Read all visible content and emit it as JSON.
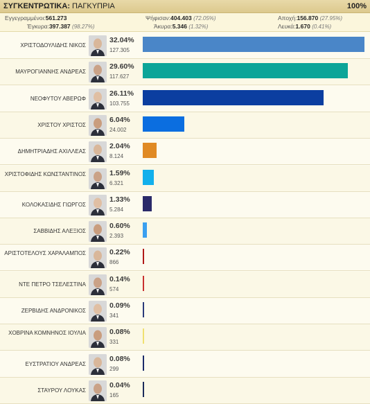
{
  "header": {
    "label": "ΣΥΓΚΕΝΤΡΩΤΙΚΑ:",
    "region": "ΠΑΓΚΥΠΡΙΑ",
    "completion": "100%"
  },
  "stats": {
    "registered_label": "Εγγεγραμμένοι:",
    "registered": "561.273",
    "voted_label": "Ψήφισαν:",
    "voted": "404.403",
    "voted_pct": "(72.05%)",
    "abstention_label": "Αποχή:",
    "abstention": "156.870",
    "abstention_pct": "(27.95%)",
    "valid_label": "Έγκυρα:",
    "valid": "397.387",
    "valid_pct": "(98.27%)",
    "invalid_label": "Άκυρα:",
    "invalid": "5.346",
    "invalid_pct": "(1.32%)",
    "blank_label": "Λευκά:",
    "blank": "1.670",
    "blank_pct": "(0.41%)"
  },
  "candidates": [
    {
      "name": "ΧΡΙΣΤΟΔΟΥΛΙΔΗΣ ΝΙΚΟΣ",
      "pct": "32.04%",
      "votes": "127.305",
      "share": 32.04,
      "color": "#4a86c8"
    },
    {
      "name": "ΜΑΥΡΟΓΙΑΝΝΗΣ ΑΝΔΡΕΑΣ",
      "pct": "29.60%",
      "votes": "117.627",
      "share": 29.6,
      "color": "#0ca598"
    },
    {
      "name": "ΝΕΟΦΥΤΟΥ ΑΒΕΡΩΦ",
      "pct": "26.11%",
      "votes": "103.755",
      "share": 26.11,
      "color": "#0b3ea0"
    },
    {
      "name": "ΧΡΙΣΤΟΥ ΧΡΙΣΤΟΣ",
      "pct": "6.04%",
      "votes": "24.002",
      "share": 6.04,
      "color": "#0b6ee0"
    },
    {
      "name": "ΔΗΜΗΤΡΙΑΔΗΣ ΑΧΙΛΛΕΑΣ",
      "pct": "2.04%",
      "votes": "8.124",
      "share": 2.04,
      "color": "#e08a24"
    },
    {
      "name": "ΧΡΙΣΤΟΦΙΔΗΣ ΚΩΝΣΤΑΝΤΙΝΟΣ",
      "pct": "1.59%",
      "votes": "6.321",
      "share": 1.59,
      "color": "#12b0ec"
    },
    {
      "name": "ΚΟΛΟΚΑΣΙΔΗΣ ΓΙΩΡΓΟΣ",
      "pct": "1.33%",
      "votes": "5.284",
      "share": 1.33,
      "color": "#2a2a6a"
    },
    {
      "name": "ΣΑΒΒΙΔΗΣ ΑΛΕΞΙΟΣ",
      "pct": "0.60%",
      "votes": "2.393",
      "share": 0.6,
      "color": "#3aa0f0"
    },
    {
      "name": "ΑΡΙΣΤΟΤΕΛΟΥΣ ΧΑΡΑΛΑΜΠΟΣ",
      "pct": "0.22%",
      "votes": "866",
      "share": 0.22,
      "color": "#b01818"
    },
    {
      "name": "ΝΤΕ ΠΕΤΡΟ ΤΣΕΛΕΣΤΙΝΑ",
      "pct": "0.14%",
      "votes": "574",
      "share": 0.14,
      "color": "#c83030"
    },
    {
      "name": "ΖΕΡΒΙΔΗΣ ΑΝΔΡΟΝΙΚΟΣ",
      "pct": "0.09%",
      "votes": "341",
      "share": 0.09,
      "color": "#2a3a7a"
    },
    {
      "name": "ΧΟΒΡΙΝΑ ΚΟΜΝΗΝΟΣ ΙΟΥΛΙΑ",
      "pct": "0.08%",
      "votes": "331",
      "share": 0.08,
      "color": "#f0e070"
    },
    {
      "name": "ΕΥΣΤΡΑΤΙΟΥ ΑΝΔΡΕΑΣ",
      "pct": "0.08%",
      "votes": "299",
      "share": 0.08,
      "color": "#1a2a6a"
    },
    {
      "name": "ΣΤΑΥΡΟΥ ΛΟΥΚΑΣ",
      "pct": "0.04%",
      "votes": "165",
      "share": 0.04,
      "color": "#1a2a5a"
    }
  ]
}
